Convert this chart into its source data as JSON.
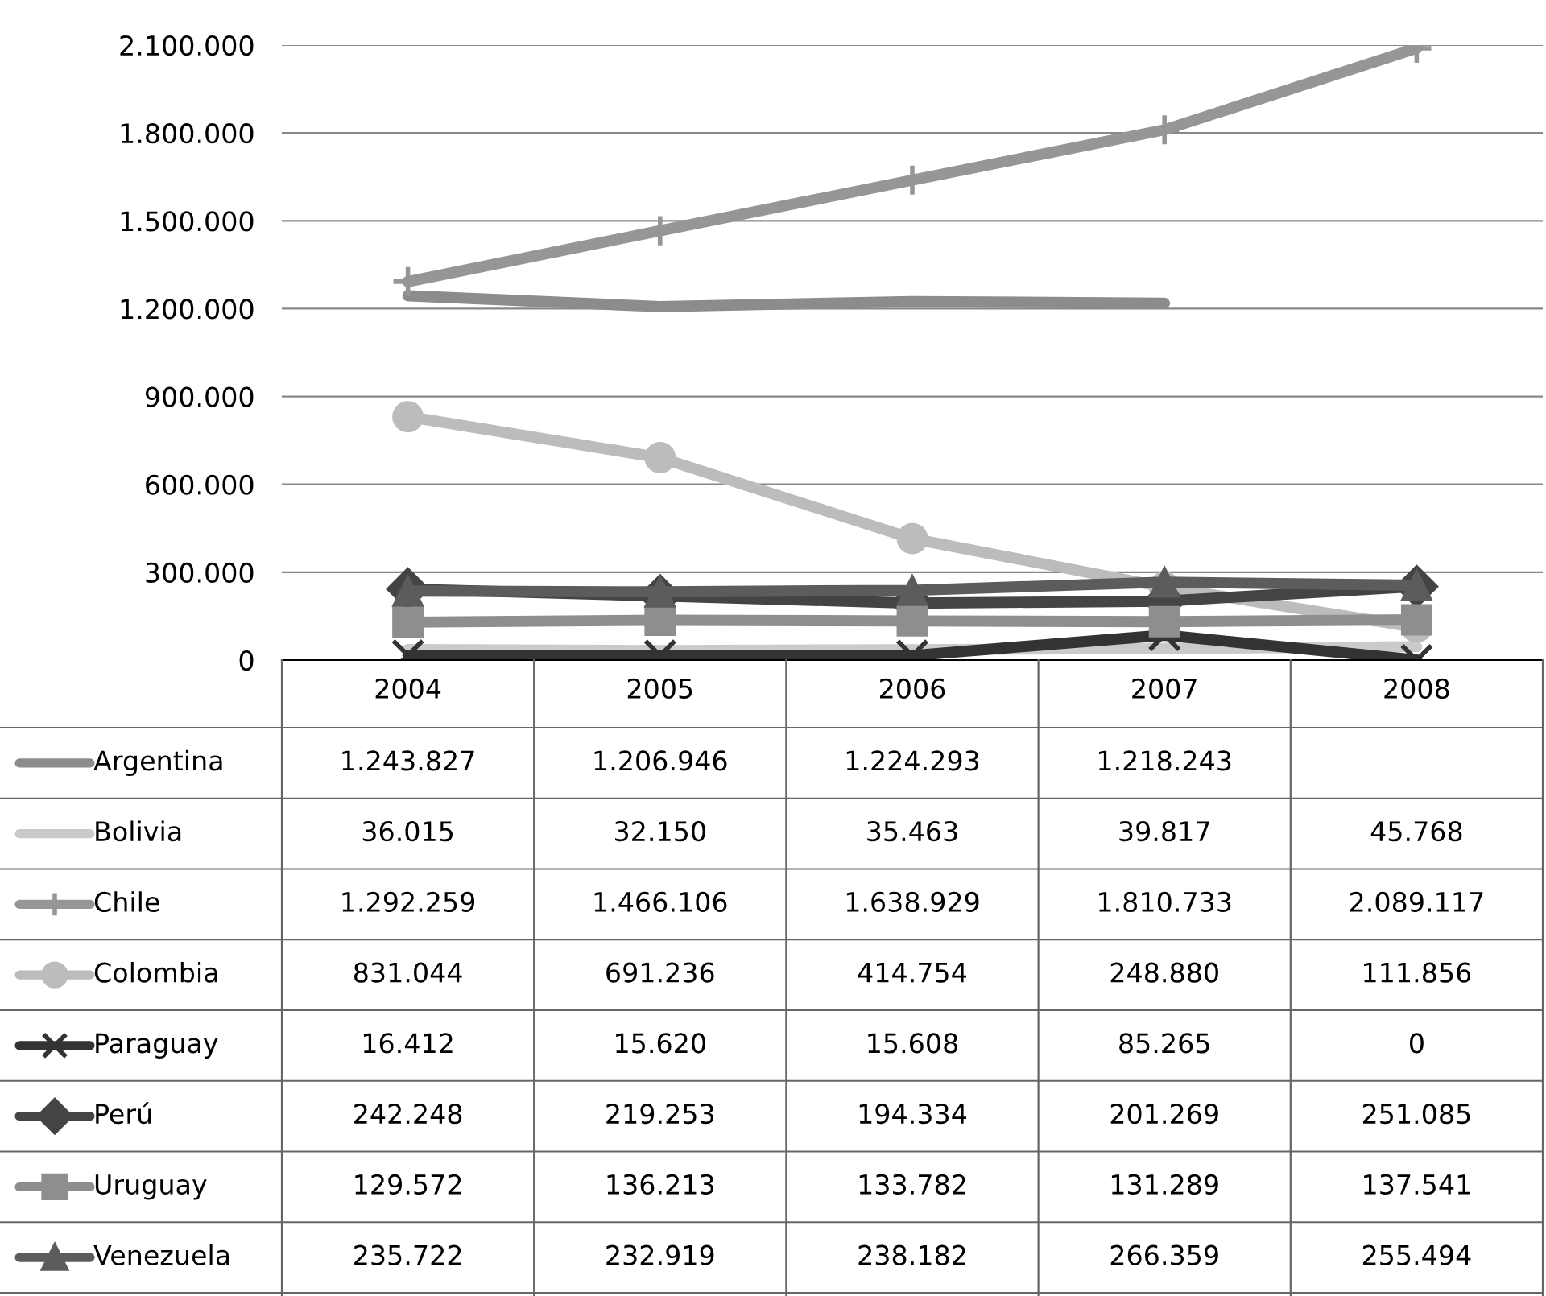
{
  "chart_data": {
    "type": "line",
    "categories": [
      "2004",
      "2005",
      "2006",
      "2007",
      "2008"
    ],
    "ylim": [
      0,
      2100000
    ],
    "yticks": [
      {
        "value": 0,
        "label": "0"
      },
      {
        "value": 300000,
        "label": "300.000"
      },
      {
        "value": 600000,
        "label": "600.000"
      },
      {
        "value": 900000,
        "label": "900.000"
      },
      {
        "value": 1200000,
        "label": "1.200.000"
      },
      {
        "value": 1500000,
        "label": "1.500.000"
      },
      {
        "value": 1800000,
        "label": "1.800.000"
      },
      {
        "value": 2100000,
        "label": "2.100.000"
      }
    ],
    "grid": "y",
    "legend": "left",
    "series": [
      {
        "name": "Argentina",
        "color": "#8c8c8c",
        "marker": "none",
        "values": [
          1243827,
          1206946,
          1224293,
          1218243,
          null
        ],
        "value_labels": [
          "1.243.827",
          "1.206.946",
          "1.224.293",
          "1.218.243",
          null
        ]
      },
      {
        "name": "Bolivia",
        "color": "#cacaca",
        "marker": "none",
        "values": [
          36015,
          32150,
          35463,
          39817,
          45768
        ],
        "value_labels": [
          "36.015",
          "32.150",
          "35.463",
          "39.817",
          "45.768"
        ]
      },
      {
        "name": "Chile",
        "color": "#969696",
        "marker": "plus",
        "values": [
          1292259,
          1466106,
          1638929,
          1810733,
          2089117
        ],
        "value_labels": [
          "1.292.259",
          "1.466.106",
          "1.638.929",
          "1.810.733",
          "2.089.117"
        ]
      },
      {
        "name": "Colombia",
        "color": "#bcbcbc",
        "marker": "circle",
        "values": [
          831044,
          691236,
          414754,
          248880,
          111856
        ],
        "value_labels": [
          "831.044",
          "691.236",
          "414.754",
          "248.880",
          "111.856"
        ]
      },
      {
        "name": "Paraguay",
        "color": "#333333",
        "marker": "cross",
        "values": [
          16412,
          15620,
          15608,
          85265,
          0
        ],
        "value_labels": [
          "16.412",
          "15.620",
          "15.608",
          "85.265",
          "0"
        ]
      },
      {
        "name": "Perú",
        "color": "#444444",
        "marker": "diamond",
        "values": [
          242248,
          219253,
          194334,
          201269,
          251085
        ],
        "value_labels": [
          "242.248",
          "219.253",
          "194.334",
          "201.269",
          "251.085"
        ]
      },
      {
        "name": "Uruguay",
        "color": "#8e8e8e",
        "marker": "square",
        "values": [
          129572,
          136213,
          133782,
          131289,
          137541
        ],
        "value_labels": [
          "129.572",
          "136.213",
          "133.782",
          "131.289",
          "137.541"
        ]
      },
      {
        "name": "Venezuela",
        "color": "#5c5c5c",
        "marker": "triangle",
        "values": [
          235722,
          232919,
          238182,
          266359,
          255494
        ],
        "value_labels": [
          "235.722",
          "232.919",
          "238.182",
          "266.359",
          "255.494"
        ]
      }
    ]
  }
}
